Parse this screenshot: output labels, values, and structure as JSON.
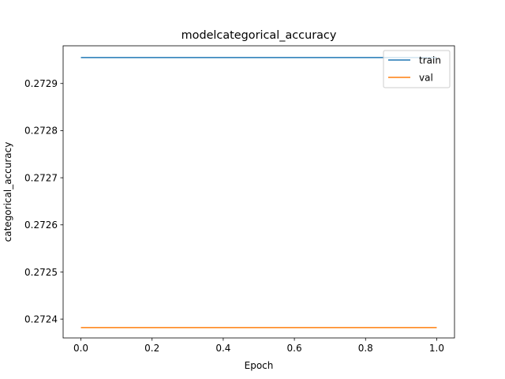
{
  "chart_data": {
    "type": "line",
    "title": "modelcategorical_accuracy",
    "xlabel": "Epoch",
    "ylabel": "categorical_accuracy",
    "x": [
      0.0,
      1.0
    ],
    "xlim": [
      -0.05,
      1.05
    ],
    "ylim": [
      0.27236,
      0.27298
    ],
    "xticks": [
      0.0,
      0.2,
      0.4,
      0.6,
      0.8,
      1.0
    ],
    "xtick_labels": [
      "0.0",
      "0.2",
      "0.4",
      "0.6",
      "0.8",
      "1.0"
    ],
    "yticks": [
      0.2724,
      0.2725,
      0.2726,
      0.2727,
      0.2728,
      0.2729
    ],
    "ytick_labels": [
      "0.2724",
      "0.2725",
      "0.2726",
      "0.2727",
      "0.2728",
      "0.2729"
    ],
    "grid": false,
    "legend_position": "top-right",
    "series": [
      {
        "name": "train",
        "values": [
          0.272955,
          0.272955
        ],
        "color": "#1f77b4"
      },
      {
        "name": "val",
        "values": [
          0.272382,
          0.272382
        ],
        "color": "#ff7f0e"
      }
    ]
  }
}
